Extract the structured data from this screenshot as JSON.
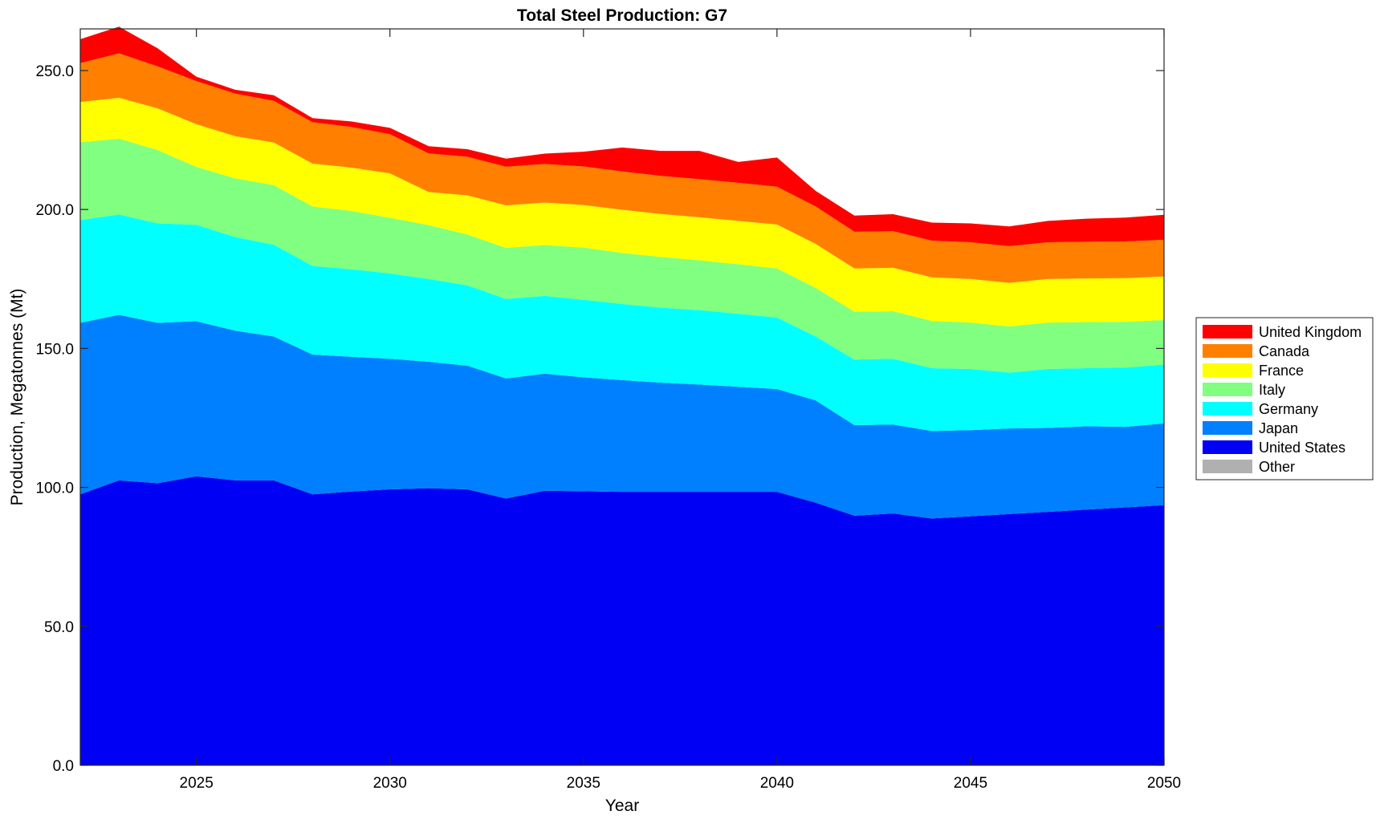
{
  "chart_data": {
    "type": "area",
    "stacked": true,
    "title": "Total Steel Production: G7",
    "xlabel": "Year",
    "ylabel": "Production, Megatonnes (Mt)",
    "xlim": [
      2022,
      2050
    ],
    "ylim": [
      0,
      265
    ],
    "xticks": [
      2025,
      2030,
      2035,
      2040,
      2045,
      2050
    ],
    "yticks": [
      0,
      50,
      100,
      150,
      200,
      250
    ],
    "ytick_labels": [
      "0.0",
      "50.0",
      "100.0",
      "150.0",
      "200.0",
      "250.0"
    ],
    "grid": false,
    "legend_position": "right",
    "x": [
      2022,
      2023,
      2024,
      2025,
      2026,
      2027,
      2028,
      2029,
      2030,
      2031,
      2032,
      2033,
      2034,
      2035,
      2036,
      2037,
      2038,
      2039,
      2040,
      2041,
      2042,
      2043,
      2044,
      2045,
      2046,
      2047,
      2048,
      2049,
      2050
    ],
    "series": [
      {
        "name": "United States",
        "color": "#0000f5",
        "values": [
          97.5,
          102.5,
          101.5,
          104,
          102.5,
          102.5,
          97.5,
          98.5,
          99.3,
          99.7,
          99.3,
          96,
          98.8,
          98.6,
          98.4,
          98.4,
          98.4,
          98.4,
          98.4,
          94.5,
          89.8,
          90.6,
          88.8,
          89.6,
          90.4,
          91.2,
          92,
          92.8,
          93.6
        ]
      },
      {
        "name": "Japan",
        "color": "#0080ff",
        "values": [
          61.7,
          59.6,
          57.7,
          55.8,
          53.9,
          51.8,
          50.3,
          48.5,
          47,
          45.5,
          44.5,
          43.2,
          42.1,
          41,
          40.2,
          39.3,
          38.6,
          37.8,
          37,
          36.8,
          32.6,
          32,
          31.5,
          31,
          30.8,
          30.2,
          30,
          29,
          29.4
        ]
      },
      {
        "name": "Germany",
        "color": "#00ffff",
        "values": [
          37,
          36.1,
          35.8,
          34.7,
          33.7,
          33,
          31.9,
          31.5,
          30.7,
          29.8,
          28.9,
          28.6,
          28,
          27.9,
          27.4,
          27,
          26.8,
          26.3,
          25.7,
          23,
          23.6,
          23.7,
          22.6,
          22,
          20.1,
          21.2,
          20.9,
          21.3,
          21.2
        ]
      },
      {
        "name": "Italy",
        "color": "#80ff80",
        "values": [
          28,
          27.3,
          26.4,
          20.8,
          21.1,
          21.5,
          21.4,
          21,
          20,
          19.4,
          18.3,
          18.4,
          18.3,
          18.8,
          18.4,
          18.2,
          17.9,
          17.8,
          17.7,
          17.5,
          17.2,
          17.1,
          17,
          16.7,
          16.6,
          16.7,
          16.6,
          16.5,
          16
        ]
      },
      {
        "name": "France",
        "color": "#ffff00",
        "values": [
          14.5,
          14.7,
          15,
          15.4,
          15.2,
          15.3,
          15.4,
          15.6,
          16,
          11.9,
          14.1,
          15.3,
          15.3,
          15.3,
          15.5,
          15.5,
          15.5,
          15.6,
          15.8,
          15.8,
          15.6,
          15.6,
          15.7,
          15.7,
          15.7,
          15.7,
          15.7,
          15.7,
          15.7
        ]
      },
      {
        "name": "Canada",
        "color": "#ff8000",
        "values": [
          14,
          16,
          15.1,
          15.5,
          15.3,
          15,
          14.9,
          14.6,
          14.1,
          13.9,
          13.9,
          13.9,
          13.9,
          13.9,
          13.8,
          13.7,
          13.7,
          13.7,
          13.6,
          13.5,
          13.2,
          13.2,
          13.2,
          13.2,
          13.2,
          13.2,
          13.2,
          13.2,
          13.2
        ]
      },
      {
        "name": "United Kingdom",
        "color": "#ff0000",
        "values": [
          8.6,
          9.6,
          6.5,
          1.6,
          1.4,
          2,
          1.5,
          2,
          2.3,
          2.6,
          2.7,
          2.9,
          3.7,
          5.3,
          8.6,
          9,
          10.2,
          7.5,
          10.5,
          5.6,
          5.8,
          6.1,
          6.5,
          6.8,
          7.1,
          7.7,
          8.3,
          8.6,
          9
        ]
      },
      {
        "name": "Other",
        "color": "#b0b0b0",
        "values": [
          0,
          0,
          0,
          0,
          0,
          0,
          0,
          0,
          0,
          0,
          0,
          0,
          0,
          0,
          0,
          0,
          0,
          0,
          0,
          0,
          0,
          0,
          0,
          0,
          0,
          0,
          0,
          0,
          0
        ]
      }
    ],
    "legend_order": [
      "United Kingdom",
      "Canada",
      "France",
      "Italy",
      "Germany",
      "Japan",
      "United States",
      "Other"
    ]
  }
}
